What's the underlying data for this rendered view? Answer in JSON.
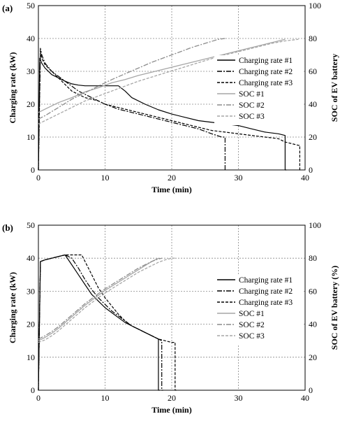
{
  "chart_data": [
    {
      "panel_label": "(a)",
      "type": "line",
      "xlabel": "Time (min)",
      "ylabel": "Charging rate (kW)",
      "y2label": "SOC of EV battery",
      "xlim": [
        0,
        40
      ],
      "ylim": [
        0,
        50
      ],
      "y2lim": [
        0,
        100
      ],
      "xticks": [
        "0",
        "10",
        "20",
        "30",
        "40"
      ],
      "yticks": [
        "0",
        "10",
        "20",
        "30",
        "40",
        "50"
      ],
      "y2ticks": [
        "0",
        "20",
        "40",
        "60",
        "80",
        "100"
      ],
      "grid": true,
      "legend_position": "right",
      "series": [
        {
          "name": "Charging rate #1",
          "axis": "left",
          "color": "#000000",
          "dash": "",
          "x": [
            0,
            0.2,
            0.5,
            1,
            2,
            3,
            4,
            5,
            6,
            7,
            8,
            9,
            10,
            11,
            12,
            13,
            14,
            16,
            18,
            20,
            22,
            24,
            26,
            28,
            30,
            32,
            34,
            36,
            37,
            37,
            37.2
          ],
          "y": [
            0,
            34,
            32.5,
            31,
            29,
            28,
            27,
            26.2,
            25.8,
            25.6,
            25.6,
            25.6,
            25.6,
            25.6,
            25.6,
            24,
            22,
            20,
            18.3,
            17,
            16,
            15,
            14.5,
            14,
            13.5,
            12.5,
            11.5,
            11,
            10.5,
            0,
            0
          ]
        },
        {
          "name": "Charging rate #2",
          "axis": "left",
          "color": "#000000",
          "dash": "7,2,2,2",
          "x": [
            0,
            0.3,
            0.5,
            1,
            2,
            3,
            4,
            5,
            6,
            7,
            8,
            9,
            10,
            12,
            14,
            16,
            18,
            20,
            22,
            24,
            26,
            27.5,
            28,
            28,
            28.2
          ],
          "y": [
            0,
            37,
            35,
            32.5,
            30,
            28.5,
            27,
            25.5,
            24,
            23,
            22,
            21,
            20,
            18.5,
            17.5,
            16.5,
            15.5,
            14.5,
            13.5,
            12.5,
            11,
            10,
            10,
            0,
            0
          ]
        },
        {
          "name": "Charging rate #3",
          "axis": "left",
          "color": "#000000",
          "dash": "4,2",
          "x": [
            0,
            0.3,
            0.5,
            1,
            2,
            3,
            4,
            5,
            6,
            7,
            8,
            9,
            10,
            12,
            14,
            16,
            18,
            20,
            22,
            24,
            26,
            28,
            30,
            32,
            34,
            36,
            37,
            38,
            39,
            39.2,
            39.2,
            39.4
          ],
          "y": [
            0,
            36,
            34,
            32,
            30,
            28,
            26,
            24,
            23,
            22,
            21.5,
            21,
            20,
            19,
            18,
            17,
            16,
            15,
            14,
            13,
            12,
            11.5,
            11,
            10.5,
            10,
            9.5,
            8.5,
            8,
            7.5,
            7.5,
            0,
            0
          ]
        },
        {
          "name": "SOC #1",
          "axis": "right",
          "color": "#a6a6a6",
          "dash": "",
          "x": [
            0,
            1,
            3,
            5,
            7,
            9,
            11,
            13,
            15,
            17,
            19,
            21,
            23,
            25,
            27,
            29,
            31,
            33,
            35,
            37
          ],
          "y": [
            35,
            37,
            41,
            44,
            47.5,
            50,
            53,
            55,
            57.5,
            59.5,
            61.5,
            63.5,
            65.5,
            67.5,
            69.5,
            71.5,
            73.5,
            75.5,
            77.5,
            79.5
          ]
        },
        {
          "name": "SOC #2",
          "axis": "right",
          "color": "#8c8c8c",
          "dash": "7,2,2,2",
          "x": [
            0,
            1,
            3,
            5,
            7,
            9,
            11,
            13,
            15,
            17,
            19,
            21,
            23,
            25,
            27,
            28
          ],
          "y": [
            31,
            33,
            38,
            43,
            47,
            51,
            55,
            58.5,
            62,
            65.5,
            68.5,
            71.5,
            74.5,
            77,
            79.5,
            80
          ]
        },
        {
          "name": "SOC #3",
          "axis": "right",
          "color": "#a6a6a6",
          "dash": "4,2",
          "x": [
            0,
            1,
            3,
            5,
            7,
            9,
            11,
            13,
            15,
            17,
            19,
            21,
            23,
            25,
            27,
            29,
            31,
            33,
            35,
            37,
            39
          ],
          "y": [
            28,
            30,
            34,
            38,
            42,
            45,
            48,
            51,
            54,
            56.5,
            59,
            61.5,
            64,
            66.5,
            69,
            71,
            73,
            75,
            77,
            78.5,
            79.5
          ]
        }
      ]
    },
    {
      "panel_label": "(b)",
      "type": "line",
      "xlabel": "Time (min)",
      "ylabel": "Charging rate (kW)",
      "y2label": "SOC of EV battery (%)",
      "xlim": [
        0,
        40
      ],
      "ylim": [
        0,
        50
      ],
      "y2lim": [
        0,
        100
      ],
      "xticks": [
        "0",
        "10",
        "20",
        "30",
        "40"
      ],
      "yticks": [
        "0",
        "10",
        "20",
        "30",
        "40",
        "50"
      ],
      "y2ticks": [
        "0",
        "20",
        "40",
        "60",
        "80",
        "100"
      ],
      "grid": true,
      "legend_position": "right",
      "series": [
        {
          "name": "Charging rate #1",
          "axis": "left",
          "color": "#000000",
          "dash": "",
          "x": [
            0,
            0.3,
            1,
            2,
            3,
            4,
            5,
            6,
            7,
            8,
            9,
            10,
            11,
            12,
            13,
            14,
            15,
            16,
            17,
            17.5,
            18,
            18,
            18.2
          ],
          "y": [
            0,
            39,
            39.5,
            40,
            40.5,
            41,
            38,
            35,
            32,
            29,
            27,
            25,
            23.5,
            22,
            20.5,
            19.5,
            18.5,
            17.5,
            16.5,
            16,
            15.5,
            0,
            0
          ]
        },
        {
          "name": "Charging rate #2",
          "axis": "left",
          "color": "#000000",
          "dash": "7,2,2,2",
          "x": [
            0,
            0.3,
            1,
            2,
            3,
            4,
            5,
            6,
            7,
            8,
            9,
            10,
            11,
            12,
            13,
            14,
            15,
            16,
            17,
            18,
            18.5,
            18.5,
            18.7
          ],
          "y": [
            0,
            39,
            39.5,
            40,
            40.5,
            41,
            40,
            37,
            33.5,
            30.5,
            28,
            26,
            24,
            22.5,
            21,
            19.5,
            18.5,
            17.5,
            16.5,
            15.5,
            15,
            0,
            0
          ]
        },
        {
          "name": "Charging rate #3",
          "axis": "left",
          "color": "#000000",
          "dash": "4,2",
          "x": [
            0,
            0.3,
            1,
            2,
            3,
            4,
            5,
            6,
            6.5,
            7,
            8,
            9,
            10,
            11,
            12,
            13,
            14,
            15,
            16,
            17,
            18,
            19,
            20,
            20.5,
            20.5,
            20.7
          ],
          "y": [
            0,
            39,
            39.5,
            40,
            40.5,
            41,
            41,
            41,
            41,
            39,
            35,
            31,
            28,
            25.5,
            23,
            21,
            19.5,
            18.5,
            17.5,
            16.5,
            15.5,
            15,
            14.5,
            14.5,
            0,
            0
          ]
        },
        {
          "name": "SOC #1",
          "axis": "right",
          "color": "#a6a6a6",
          "dash": "",
          "x": [
            0,
            1,
            2,
            3,
            4,
            5,
            6,
            7,
            8,
            9,
            10,
            11,
            12,
            13,
            14,
            15,
            16,
            17,
            18
          ],
          "y": [
            30,
            32,
            34.5,
            37.5,
            41,
            44.5,
            48,
            51.5,
            54.5,
            57.5,
            60.5,
            63,
            65.5,
            68,
            70.5,
            73,
            75.5,
            78,
            80
          ]
        },
        {
          "name": "SOC #2",
          "axis": "right",
          "color": "#8c8c8c",
          "dash": "7,2,2,2",
          "x": [
            0,
            1,
            2,
            3,
            4,
            5,
            6,
            7,
            8,
            9,
            10,
            11,
            12,
            13,
            14,
            15,
            16,
            17,
            18,
            18.5
          ],
          "y": [
            31,
            33,
            35.5,
            38.5,
            42,
            45.5,
            49,
            52.5,
            55.5,
            58.5,
            61.5,
            64,
            66.5,
            69,
            71.5,
            74,
            76,
            78,
            79.5,
            80
          ]
        },
        {
          "name": "SOC #3",
          "axis": "right",
          "color": "#a6a6a6",
          "dash": "4,2",
          "x": [
            0,
            1,
            2,
            3,
            4,
            5,
            6,
            7,
            8,
            9,
            10,
            11,
            12,
            13,
            14,
            15,
            16,
            17,
            18,
            19,
            20,
            20.5
          ],
          "y": [
            29,
            30.5,
            33,
            36,
            39.5,
            43,
            46.5,
            50,
            53,
            56,
            59,
            61.5,
            64,
            66.5,
            69,
            71.5,
            73.5,
            75.5,
            77.5,
            79,
            80,
            80
          ]
        }
      ]
    }
  ]
}
